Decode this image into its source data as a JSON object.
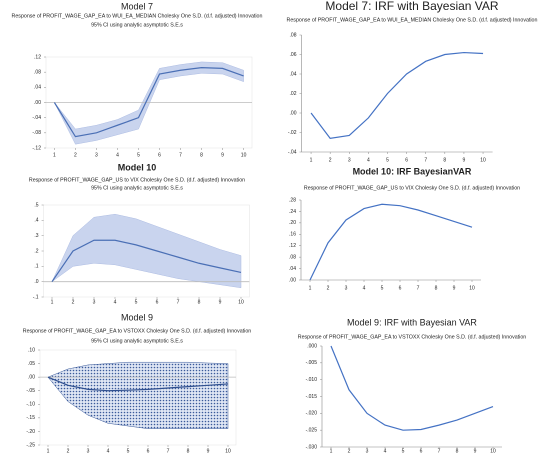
{
  "chart_data": [
    {
      "type": "line",
      "title": "Model 7",
      "subtitle": "Response of PROFIT_WAGE_GAP_EA to WUI_EA_MEDIAN Cholesky One S.D. (d.f. adjusted) Innovation",
      "note": "95% CI using analytic asymptotic S.E.s",
      "x": [
        1,
        2,
        3,
        4,
        5,
        6,
        7,
        8,
        9,
        10
      ],
      "series": [
        {
          "color": "#4a6fb5",
          "values": [
            0,
            -0.09,
            -0.08,
            -0.06,
            -0.04,
            0.075,
            0.085,
            0.092,
            0.09,
            0.07
          ]
        }
      ],
      "band": {
        "color": "#c9d4ee",
        "style": "solid",
        "upper": [
          0,
          -0.07,
          -0.06,
          -0.045,
          -0.02,
          0.09,
          0.1,
          0.107,
          0.105,
          0.085
        ],
        "lower": [
          0,
          -0.11,
          -0.1,
          -0.085,
          -0.07,
          0.06,
          0.07,
          0.077,
          0.075,
          0.055
        ]
      },
      "xlim": [
        0.6,
        10.4
      ],
      "xticks": [
        1,
        2,
        3,
        4,
        5,
        6,
        7,
        8,
        9,
        10
      ],
      "ylim": [
        -0.12,
        0.12
      ],
      "yticks": [
        {
          "value": 0.12,
          "label": ".12"
        },
        {
          "value": 0.08,
          "label": ".08"
        },
        {
          "value": 0.04,
          "label": ".04"
        },
        {
          "value": 0,
          "label": ".00"
        },
        {
          "value": -0.04,
          "label": "-.04"
        },
        {
          "value": -0.08,
          "label": "-.08"
        },
        {
          "value": -0.12,
          "label": "-.12"
        }
      ],
      "zero_line": true
    },
    {
      "type": "line",
      "title": "Model 7: IRF with Bayesian VAR",
      "subtitle": "Response of PROFIT_WAGE_GAP_EA to WUI_EA_MEDIAN Cholesky One S.D. (d.f. adjusted) Innovation",
      "x": [
        1,
        2,
        3,
        4,
        5,
        6,
        7,
        8,
        9,
        10
      ],
      "series": [
        {
          "color": "#4472c4",
          "values": [
            0,
            -0.026,
            -0.023,
            -0.005,
            0.02,
            0.04,
            0.053,
            0.06,
            0.062,
            0.061
          ]
        }
      ],
      "xlim": [
        0.5,
        10.5
      ],
      "xticks": [
        1,
        2,
        3,
        4,
        5,
        6,
        7,
        8,
        9,
        10
      ],
      "ylim": [
        -0.04,
        0.08
      ],
      "yticks": [
        {
          "value": 0.08,
          "label": ".08"
        },
        {
          "value": 0.06,
          "label": ".06"
        },
        {
          "value": 0.04,
          "label": ".04"
        },
        {
          "value": 0.02,
          "label": ".02"
        },
        {
          "value": 0,
          "label": ".00"
        },
        {
          "value": -0.02,
          "label": "-.02"
        },
        {
          "value": -0.04,
          "label": "-.04"
        }
      ],
      "zero_line": false
    },
    {
      "type": "line",
      "title": "Model 10",
      "subtitle": "Response of PROFIT_WAGE_GAP_US to VIX Cholesky One S.D. (d.f. adjusted) Innovation",
      "note": "95% CI using analytic asymptotic S.E.s",
      "x": [
        1,
        2,
        3,
        4,
        5,
        6,
        7,
        8,
        9,
        10
      ],
      "series": [
        {
          "color": "#4a6fb5",
          "values": [
            0,
            0.2,
            0.27,
            0.27,
            0.24,
            0.2,
            0.16,
            0.12,
            0.09,
            0.06
          ]
        }
      ],
      "band": {
        "color": "#c9d4ee",
        "style": "solid",
        "upper": [
          0,
          0.3,
          0.42,
          0.44,
          0.41,
          0.36,
          0.31,
          0.26,
          0.21,
          0.17
        ],
        "lower": [
          0,
          0.1,
          0.12,
          0.11,
          0.08,
          0.05,
          0.02,
          0,
          -0.02,
          -0.04
        ]
      },
      "xlim": [
        0.6,
        10.4
      ],
      "xticks": [
        1,
        2,
        3,
        4,
        5,
        6,
        7,
        8,
        9,
        10
      ],
      "ylim": [
        -0.1,
        0.5
      ],
      "yticks": [
        {
          "value": 0.5,
          "label": ".5"
        },
        {
          "value": 0.4,
          "label": ".4"
        },
        {
          "value": 0.3,
          "label": ".3"
        },
        {
          "value": 0.2,
          "label": ".2"
        },
        {
          "value": 0.1,
          "label": ".1"
        },
        {
          "value": 0,
          "label": ".0"
        },
        {
          "value": -0.1,
          "label": "-.1"
        }
      ],
      "zero_line": true
    },
    {
      "type": "line",
      "title": "Model 10: IRF BayesianVAR",
      "subtitle": "Response of PROFIT_WAGE_GAP_US to VIX Cholesky One S.D. (d.f. adjusted) Innovation",
      "x": [
        1,
        2,
        3,
        4,
        5,
        6,
        7,
        8,
        9,
        10
      ],
      "series": [
        {
          "color": "#4472c4",
          "values": [
            0,
            0.13,
            0.21,
            0.25,
            0.265,
            0.26,
            0.245,
            0.225,
            0.205,
            0.185
          ]
        }
      ],
      "xlim": [
        0.5,
        10.5
      ],
      "xticks": [
        1,
        2,
        3,
        4,
        5,
        6,
        7,
        8,
        9,
        10
      ],
      "ylim": [
        0,
        0.28
      ],
      "yticks": [
        {
          "value": 0.28,
          "label": ".28"
        },
        {
          "value": 0.24,
          "label": ".24"
        },
        {
          "value": 0.2,
          "label": ".20"
        },
        {
          "value": 0.16,
          "label": ".16"
        },
        {
          "value": 0.12,
          "label": ".12"
        },
        {
          "value": 0.08,
          "label": ".08"
        },
        {
          "value": 0.04,
          "label": ".04"
        },
        {
          "value": 0,
          "label": ".00"
        }
      ],
      "zero_line": false
    },
    {
      "type": "line",
      "title": "Model 9",
      "subtitle": "Response of PROFIT_WAGE_GAP_EA to VSTOXX Cholesky One S.D. (d.f. adjusted) Innovation",
      "note": "95% CI using analytic asymptotic S.E.s",
      "x": [
        1,
        2,
        3,
        4,
        5,
        6,
        7,
        8,
        9,
        10
      ],
      "series": [
        {
          "color": "#2f4f8f",
          "values": [
            0,
            -0.03,
            -0.045,
            -0.05,
            -0.048,
            -0.045,
            -0.04,
            -0.035,
            -0.03,
            -0.025
          ]
        }
      ],
      "band": {
        "color": "#3a5a9a",
        "style": "hatch",
        "upper": [
          0,
          0.03,
          0.045,
          0.05,
          0.055,
          0.055,
          0.055,
          0.055,
          0.052,
          0.05
        ],
        "lower": [
          0,
          -0.09,
          -0.14,
          -0.17,
          -0.18,
          -0.19,
          -0.19,
          -0.19,
          -0.19,
          -0.19
        ]
      },
      "xlim": [
        0.6,
        10.4
      ],
      "xticks": [
        1,
        2,
        3,
        4,
        5,
        6,
        7,
        8,
        9,
        10
      ],
      "ylim": [
        -0.25,
        0.1
      ],
      "yticks": [
        {
          "value": 0.1,
          "label": ".10"
        },
        {
          "value": 0.05,
          "label": ".05"
        },
        {
          "value": 0,
          "label": ".00"
        },
        {
          "value": -0.05,
          "label": "-.05"
        },
        {
          "value": -0.1,
          "label": "-.10"
        },
        {
          "value": -0.15,
          "label": "-.15"
        },
        {
          "value": -0.2,
          "label": "-.20"
        },
        {
          "value": -0.25,
          "label": "-.25"
        }
      ],
      "zero_line": true
    },
    {
      "type": "line",
      "title": "Model 9: IRF with Bayesian VAR",
      "subtitle": "Response of PROFIT_WAGE_GAP_EA to VSTOXX Cholesky One S.D. (d.f. adjusted) Innovation",
      "x": [
        1,
        2,
        3,
        4,
        5,
        6,
        7,
        8,
        9,
        10
      ],
      "series": [
        {
          "color": "#4472c4",
          "values": [
            0,
            -0.013,
            -0.02,
            -0.0235,
            -0.025,
            -0.0248,
            -0.0235,
            -0.022,
            -0.02,
            -0.018
          ]
        }
      ],
      "xlim": [
        0.5,
        10.5
      ],
      "xticks": [
        1,
        2,
        3,
        4,
        5,
        6,
        7,
        8,
        9,
        10
      ],
      "ylim": [
        -0.03,
        0
      ],
      "yticks": [
        {
          "value": 0,
          "label": ".000"
        },
        {
          "value": -0.005,
          "label": "-.005"
        },
        {
          "value": -0.01,
          "label": "-.010"
        },
        {
          "value": -0.015,
          "label": "-.015"
        },
        {
          "value": -0.02,
          "label": "-.020"
        },
        {
          "value": -0.025,
          "label": "-.025"
        },
        {
          "value": -0.03,
          "label": "-.030"
        }
      ],
      "zero_line": false
    }
  ]
}
